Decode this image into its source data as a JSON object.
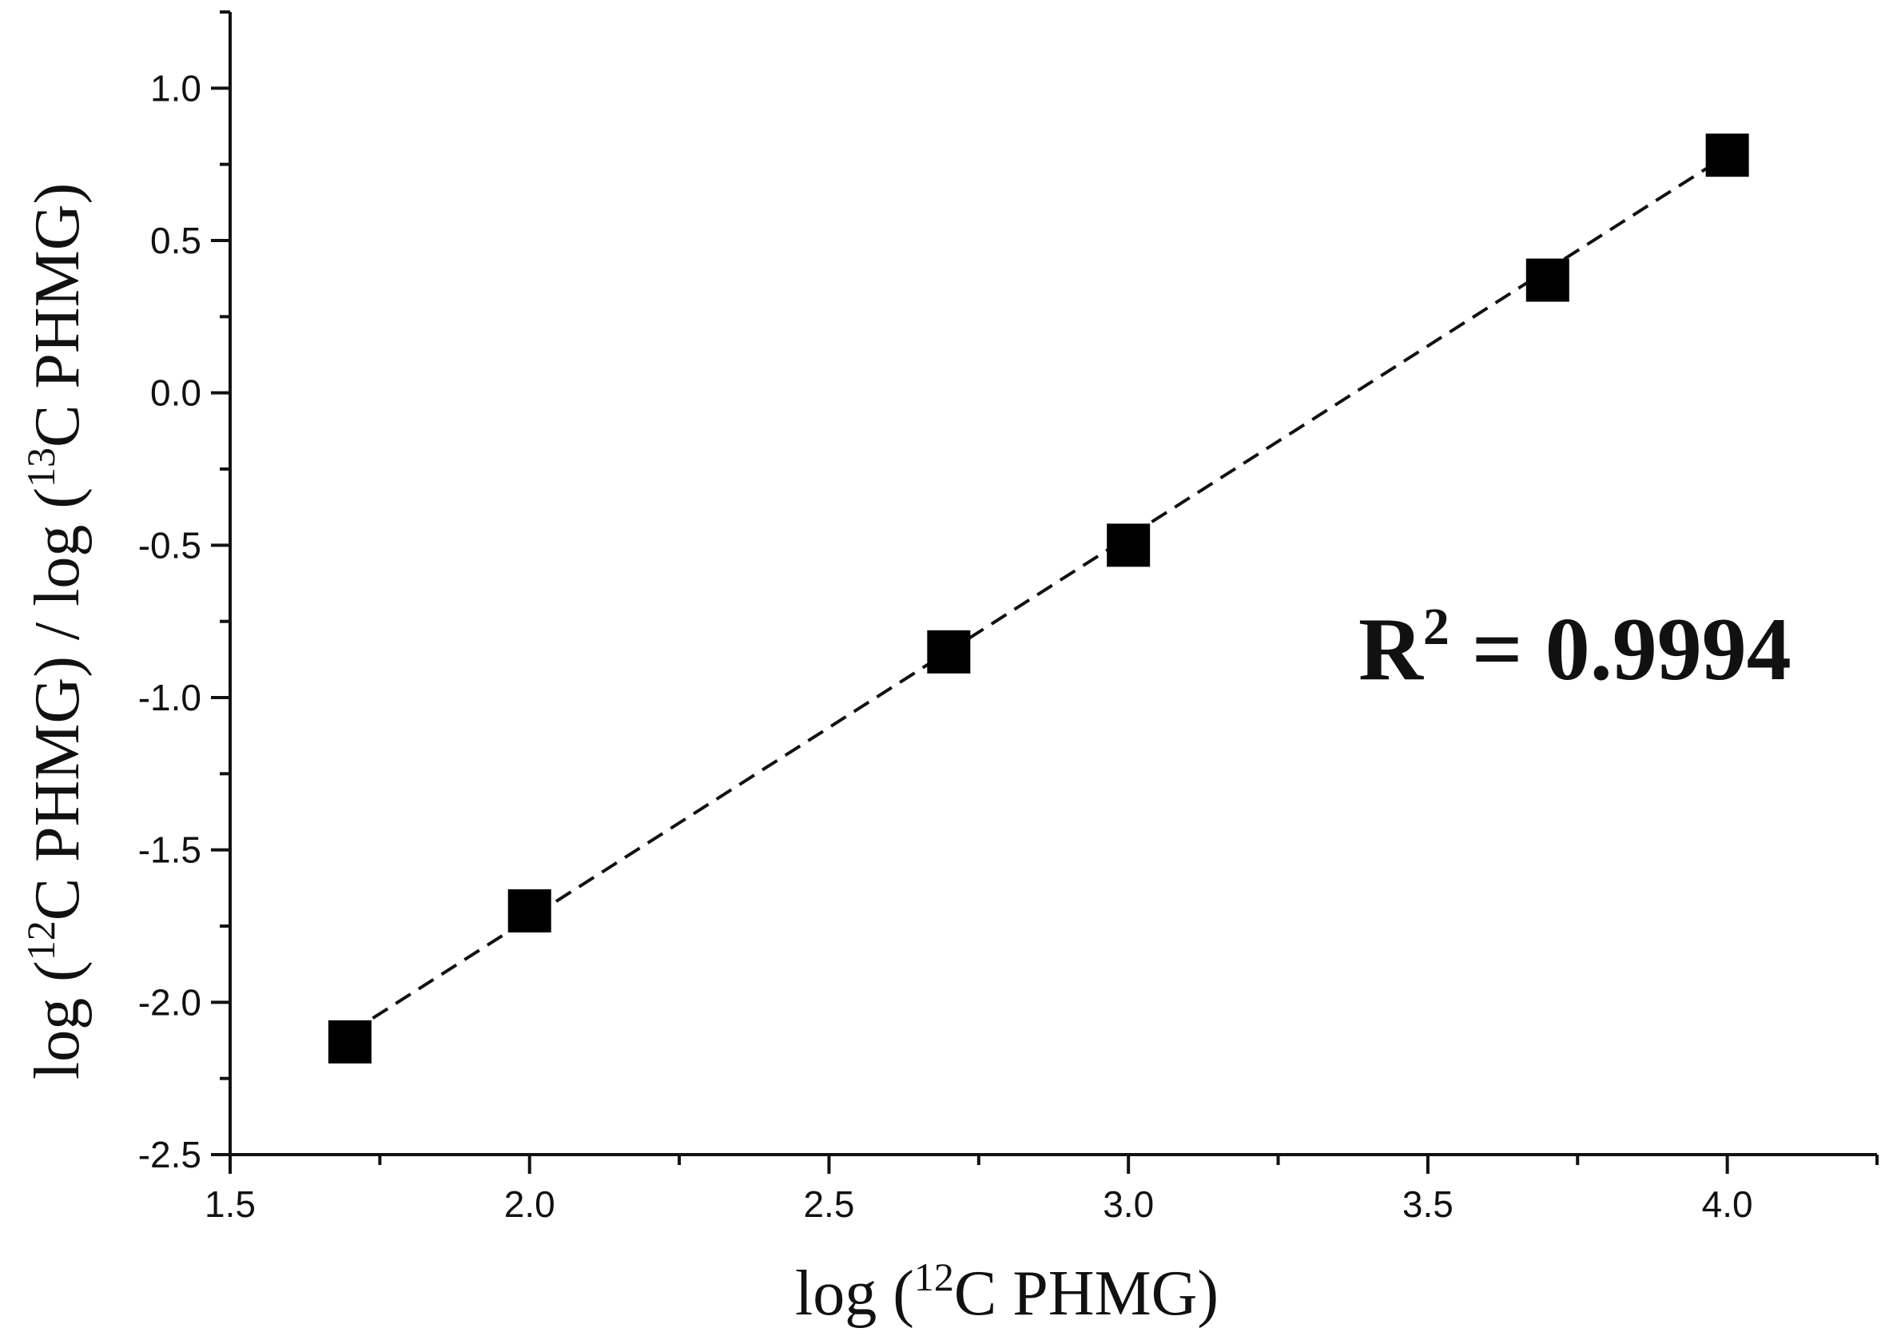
{
  "chart_data": {
    "type": "scatter",
    "xlabel": {
      "pre": "log (",
      "sup": "12",
      "post": "C PHMG)"
    },
    "ylabel": {
      "pre": "log (",
      "sup1": "12",
      "mid": "C PHMG) / log (",
      "sup2": "13",
      "post": "C PHMG)"
    },
    "xlim": [
      1.5,
      4.25
    ],
    "ylim": [
      -2.5,
      1.25
    ],
    "x_ticks": [
      1.5,
      2.0,
      2.5,
      3.0,
      3.5,
      4.0
    ],
    "x_tick_labels": [
      "1.5",
      "2.0",
      "2.5",
      "3.0",
      "3.5",
      "4.0"
    ],
    "y_ticks": [
      -2.5,
      -2.0,
      -1.5,
      -1.0,
      -0.5,
      0.0,
      0.5,
      1.0
    ],
    "y_tick_labels": [
      "-2.5",
      "-2.0",
      "-1.5",
      "-1.0",
      "-0.5",
      "0.0",
      "0.5",
      "1.0"
    ],
    "series": [
      {
        "marker": "square",
        "color": "#000000",
        "x": [
          1.7,
          2.0,
          2.7,
          3.0,
          3.7,
          4.0
        ],
        "y": [
          -2.13,
          -1.7,
          -0.85,
          -0.5,
          0.37,
          0.78
        ]
      }
    ],
    "fit_line": {
      "style": "dashed",
      "x": [
        1.7,
        4.0
      ],
      "y": [
        -2.1,
        0.78
      ]
    },
    "annotation": {
      "pre": "R",
      "sup": "2",
      "post": " = 0.9994"
    },
    "grid": false
  }
}
